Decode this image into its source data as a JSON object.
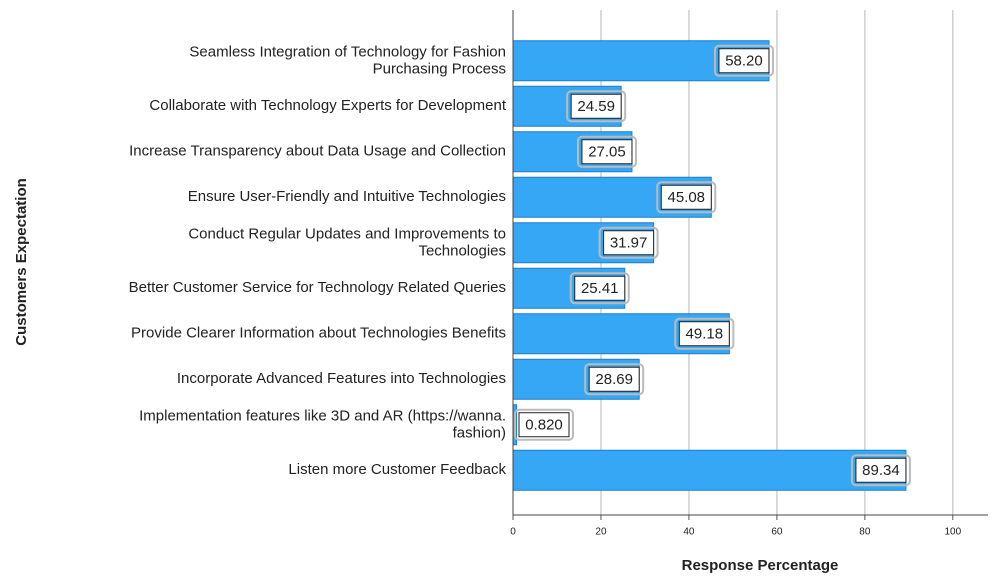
{
  "chart_data": {
    "type": "bar",
    "orientation": "horizontal",
    "xlabel": "Response Percentage",
    "ylabel": "Customers Expectation",
    "categories": [
      "Seamless Integration of Technology for Fashion\nPurchasing Process",
      "Collaborate with Technology Experts for Development",
      "Increase Transparency about Data Usage and Collection",
      "Ensure User-Friendly and Intuitive Technologies",
      "Conduct Regular Updates and Improvements to\nTechnologies",
      "Better Customer Service for Technology Related Queries",
      "Provide Clearer Information about Technologies Benefits",
      "Incorporate Advanced Features into Technologies",
      "Implementation features like 3D and AR (https://wanna.\nfashion)",
      "Listen more Customer Feedback"
    ],
    "values": [
      58.2,
      24.59,
      27.05,
      45.08,
      31.97,
      25.41,
      49.18,
      28.69,
      0.82,
      89.34
    ],
    "value_labels": [
      "58.20",
      "24.59",
      "27.05",
      "45.08",
      "31.97",
      "25.41",
      "49.18",
      "28.69",
      "0.820",
      "89.34"
    ],
    "color": "#35a7f5",
    "xlim": [
      0,
      108
    ],
    "xticks": [
      0,
      20,
      40,
      60,
      80,
      100
    ],
    "grid": true
  }
}
